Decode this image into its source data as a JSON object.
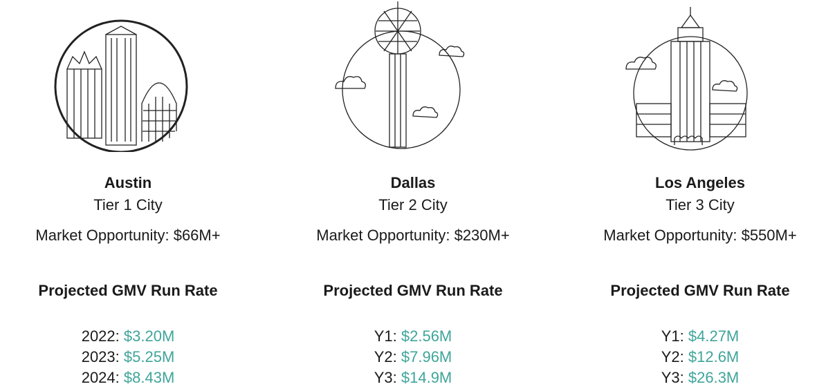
{
  "cities": [
    {
      "name": "Austin",
      "tier": "Tier 1 City",
      "market": "Market Opportunity: $66M+",
      "heading": "Projected GMV Run Rate",
      "rows": [
        {
          "label": "2022:",
          "value": "$3.20M"
        },
        {
          "label": "2023:",
          "value": "$5.25M"
        },
        {
          "label": "2024:",
          "value": "$8.43M"
        }
      ]
    },
    {
      "name": "Dallas",
      "tier": "Tier 2 City",
      "market": "Market Opportunity: $230M+",
      "heading": "Projected GMV Run Rate",
      "rows": [
        {
          "label": "Y1:",
          "value": "$2.56M"
        },
        {
          "label": "Y2:",
          "value": "$7.96M"
        },
        {
          "label": "Y3:",
          "value": "$14.9M"
        }
      ]
    },
    {
      "name": "Los Angeles",
      "tier": "Tier 3 City",
      "market": "Market Opportunity: $550M+",
      "heading": "Projected GMV Run Rate",
      "rows": [
        {
          "label": "Y1:",
          "value": "$4.27M"
        },
        {
          "label": "Y2:",
          "value": "$12.6M"
        },
        {
          "label": "Y3:",
          "value": "$26.3M"
        }
      ]
    }
  ]
}
